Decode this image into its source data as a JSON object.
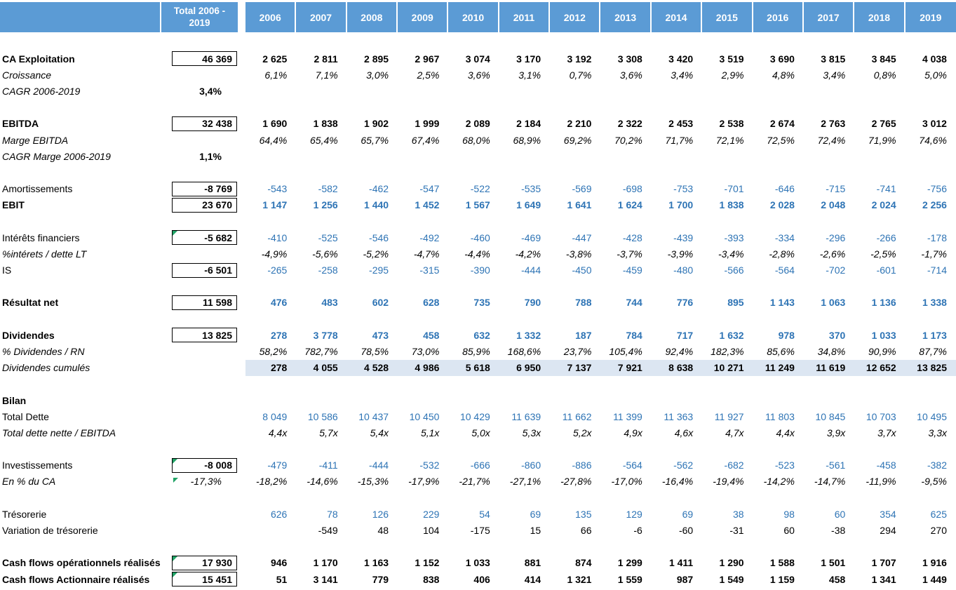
{
  "header": {
    "total_label_line1": "Total 2006 -",
    "total_label_line2": "2019",
    "years": [
      "2006",
      "2007",
      "2008",
      "2009",
      "2010",
      "2011",
      "2012",
      "2013",
      "2014",
      "2015",
      "2016",
      "2017",
      "2018",
      "2019"
    ]
  },
  "colors": {
    "header_bg": "#5B9BD5",
    "header_text": "#FFFFFF",
    "value_blue": "#2E74B5",
    "shaded_row_bg": "#DCE6F2",
    "corner_green": "#21A366",
    "box_border": "#000000"
  },
  "rows": [
    {
      "label": "CA Exploitation",
      "label_style": "bold",
      "total": "46 369",
      "total_boxed": true,
      "values": [
        "2 625",
        "2 811",
        "2 895",
        "2 967",
        "3 074",
        "3 170",
        "3 192",
        "3 308",
        "3 420",
        "3 519",
        "3 690",
        "3 815",
        "3 845",
        "4 038"
      ],
      "value_color": "black",
      "value_bold": true
    },
    {
      "label": "Croissance",
      "label_style": "italic",
      "values": [
        "6,1%",
        "7,1%",
        "3,0%",
        "2,5%",
        "3,6%",
        "3,1%",
        "0,7%",
        "3,6%",
        "3,4%",
        "2,9%",
        "4,8%",
        "3,4%",
        "0,8%",
        "5,0%"
      ],
      "value_color": "black",
      "value_italic": true
    },
    {
      "label": "CAGR 2006-2019",
      "label_style": "italic",
      "total": "3,4%",
      "total_boxed": false,
      "total_bold": true,
      "values": []
    },
    {
      "blank": true
    },
    {
      "label": "EBITDA",
      "label_style": "bold",
      "total": "32 438",
      "total_boxed": true,
      "values": [
        "1 690",
        "1 838",
        "1 902",
        "1 999",
        "2 089",
        "2 184",
        "2 210",
        "2 322",
        "2 453",
        "2 538",
        "2 674",
        "2 763",
        "2 765",
        "3 012"
      ],
      "value_color": "black",
      "value_bold": true
    },
    {
      "label": "Marge EBITDA",
      "label_style": "italic",
      "values": [
        "64,4%",
        "65,4%",
        "65,7%",
        "67,4%",
        "68,0%",
        "68,9%",
        "69,2%",
        "70,2%",
        "71,7%",
        "72,1%",
        "72,5%",
        "72,4%",
        "71,9%",
        "74,6%"
      ],
      "value_color": "black",
      "value_italic": true
    },
    {
      "label": "CAGR Marge 2006-2019",
      "label_style": "italic",
      "total": "1,1%",
      "total_boxed": false,
      "total_bold": true,
      "values": []
    },
    {
      "blank": true
    },
    {
      "label": "Amortissements",
      "label_style": "normal",
      "total": "-8 769",
      "total_boxed": true,
      "values": [
        "-543",
        "-582",
        "-462",
        "-547",
        "-522",
        "-535",
        "-569",
        "-698",
        "-753",
        "-701",
        "-646",
        "-715",
        "-741",
        "-756"
      ],
      "value_color": "blue"
    },
    {
      "label": "EBIT",
      "label_style": "bold",
      "total": "23 670",
      "total_boxed": true,
      "values": [
        "1 147",
        "1 256",
        "1 440",
        "1 452",
        "1 567",
        "1 649",
        "1 641",
        "1 624",
        "1 700",
        "1 838",
        "2 028",
        "2 048",
        "2 024",
        "2 256"
      ],
      "value_color": "blue",
      "value_bold": true
    },
    {
      "blank": true
    },
    {
      "label": "Intérêts financiers",
      "label_style": "normal",
      "total": "-5 682",
      "total_boxed": true,
      "green_corner": true,
      "values": [
        "-410",
        "-525",
        "-546",
        "-492",
        "-460",
        "-469",
        "-447",
        "-428",
        "-439",
        "-393",
        "-334",
        "-296",
        "-266",
        "-178"
      ],
      "value_color": "blue"
    },
    {
      "label": "%intérets / dette LT",
      "label_style": "italic",
      "values": [
        "-4,9%",
        "-5,6%",
        "-5,2%",
        "-4,7%",
        "-4,4%",
        "-4,2%",
        "-3,8%",
        "-3,7%",
        "-3,9%",
        "-3,4%",
        "-2,8%",
        "-2,6%",
        "-2,5%",
        "-1,7%"
      ],
      "value_color": "black",
      "value_italic": true
    },
    {
      "label": "IS",
      "label_style": "normal",
      "total": "-6 501",
      "total_boxed": true,
      "values": [
        "-265",
        "-258",
        "-295",
        "-315",
        "-390",
        "-444",
        "-450",
        "-459",
        "-480",
        "-566",
        "-564",
        "-702",
        "-601",
        "-714"
      ],
      "value_color": "blue"
    },
    {
      "blank": true
    },
    {
      "label": "Résultat net",
      "label_style": "bold",
      "total": "11 598",
      "total_boxed": true,
      "values": [
        "476",
        "483",
        "602",
        "628",
        "735",
        "790",
        "788",
        "744",
        "776",
        "895",
        "1 143",
        "1 063",
        "1 136",
        "1 338"
      ],
      "value_color": "blue",
      "value_bold": true
    },
    {
      "blank": true
    },
    {
      "label": "Dividendes",
      "label_style": "bold",
      "total": "13 825",
      "total_boxed": true,
      "values": [
        "278",
        "3 778",
        "473",
        "458",
        "632",
        "1 332",
        "187",
        "784",
        "717",
        "1 632",
        "978",
        "370",
        "1 033",
        "1 173"
      ],
      "value_color": "blue",
      "value_bold": true
    },
    {
      "label": "% Dividendes / RN",
      "label_style": "italic",
      "values": [
        "58,2%",
        "782,7%",
        "78,5%",
        "73,0%",
        "85,9%",
        "168,6%",
        "23,7%",
        "105,4%",
        "92,4%",
        "182,3%",
        "85,6%",
        "34,8%",
        "90,9%",
        "87,7%"
      ],
      "value_color": "black",
      "value_italic": true
    },
    {
      "label": "Dividendes cumulés",
      "label_style": "italic",
      "values": [
        "278",
        "4 055",
        "4 528",
        "4 986",
        "5 618",
        "6 950",
        "7 137",
        "7 921",
        "8 638",
        "10 271",
        "11 249",
        "11 619",
        "12 652",
        "13 825"
      ],
      "value_color": "black",
      "value_bold": true,
      "shaded": true
    },
    {
      "blank": true
    },
    {
      "label": "Bilan",
      "label_style": "bold",
      "values": []
    },
    {
      "label": "Total Dette",
      "label_style": "normal",
      "values": [
        "8 049",
        "10 586",
        "10 437",
        "10 450",
        "10 429",
        "11 639",
        "11 662",
        "11 399",
        "11 363",
        "11 927",
        "11 803",
        "10 845",
        "10 703",
        "10 495"
      ],
      "value_color": "blue"
    },
    {
      "label": "Total dette nette / EBITDA",
      "label_style": "italic",
      "values": [
        "4,4x",
        "5,7x",
        "5,4x",
        "5,1x",
        "5,0x",
        "5,3x",
        "5,2x",
        "4,9x",
        "4,6x",
        "4,7x",
        "4,4x",
        "3,9x",
        "3,7x",
        "3,3x"
      ],
      "value_color": "black",
      "value_italic": true
    },
    {
      "blank": true
    },
    {
      "label": "Investissements",
      "label_style": "normal",
      "total": "-8 008",
      "total_boxed": true,
      "green_corner": true,
      "values": [
        "-479",
        "-411",
        "-444",
        "-532",
        "-666",
        "-860",
        "-886",
        "-564",
        "-562",
        "-682",
        "-523",
        "-561",
        "-458",
        "-382"
      ],
      "value_color": "blue"
    },
    {
      "label": "En % du CA",
      "label_style": "italic",
      "total": "-17,3%",
      "total_boxed": false,
      "total_italic": true,
      "green_corner": true,
      "values": [
        "-18,2%",
        "-14,6%",
        "-15,3%",
        "-17,9%",
        "-21,7%",
        "-27,1%",
        "-27,8%",
        "-17,0%",
        "-16,4%",
        "-19,4%",
        "-14,2%",
        "-14,7%",
        "-11,9%",
        "-9,5%"
      ],
      "value_color": "black",
      "value_italic": true
    },
    {
      "blank": true
    },
    {
      "label": "Trésorerie",
      "label_style": "normal",
      "values": [
        "626",
        "78",
        "126",
        "229",
        "54",
        "69",
        "135",
        "129",
        "69",
        "38",
        "98",
        "60",
        "354",
        "625"
      ],
      "value_color": "blue"
    },
    {
      "label": "Variation de trésorerie",
      "label_style": "normal",
      "values": [
        "",
        "-549",
        "48",
        "104",
        "-175",
        "15",
        "66",
        "-6",
        "-60",
        "-31",
        "60",
        "-38",
        "294",
        "270"
      ],
      "value_color": "black"
    },
    {
      "blank": true
    },
    {
      "label": "Cash flows opérationnels réalisés",
      "label_style": "bold",
      "total": "17 930",
      "total_boxed": true,
      "green_corner": true,
      "values": [
        "946",
        "1 170",
        "1 163",
        "1 152",
        "1 033",
        "881",
        "874",
        "1 299",
        "1 411",
        "1 290",
        "1 588",
        "1 501",
        "1 707",
        "1 916"
      ],
      "value_color": "black",
      "value_bold": true
    },
    {
      "label": "Cash flows Actionnaire réalisés",
      "label_style": "bold",
      "total": "15 451",
      "total_boxed": true,
      "green_corner": true,
      "values": [
        "51",
        "3 141",
        "779",
        "838",
        "406",
        "414",
        "1 321",
        "1 559",
        "987",
        "1 549",
        "1 159",
        "458",
        "1 341",
        "1 449"
      ],
      "value_color": "black",
      "value_bold": true
    }
  ]
}
